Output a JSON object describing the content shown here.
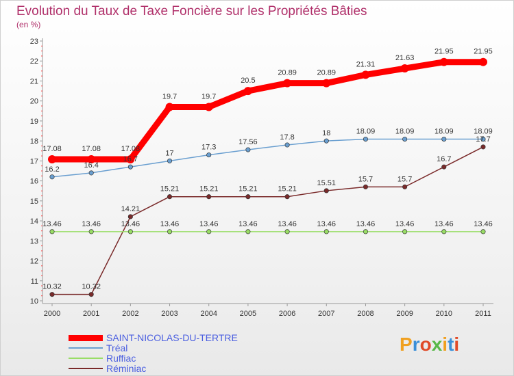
{
  "title": "Evolution du Taux de Taxe Foncière sur les Propriétés Bâties",
  "unit_label": "(en %)",
  "brand": {
    "text": "Proxiti",
    "colors": [
      "#f0a020",
      "#3a8fd8",
      "#e04a28",
      "#58b848",
      "#f0a020",
      "#3a8fd8",
      "#e04a28"
    ]
  },
  "chart_data": {
    "type": "line",
    "title": "Evolution du Taux de Taxe Foncière sur les Propriétés Bâties",
    "ylabel": "(en %)",
    "xlabel": "",
    "ylim": [
      10,
      23
    ],
    "yticks": [
      "10",
      "11",
      "12",
      "13",
      "14",
      "15",
      "16",
      "17",
      "18",
      "19",
      "20",
      "21",
      "22",
      "23"
    ],
    "x": [
      "2000",
      "2001",
      "2002",
      "2003",
      "2004",
      "2005",
      "2006",
      "2007",
      "2008",
      "2009",
      "2010",
      "2011"
    ],
    "series": [
      {
        "name": "SAINT-NICOLAS-DU-TERTRE",
        "color": "#ff0000",
        "values": [
          17.08,
          17.08,
          17.08,
          19.7,
          19.7,
          20.5,
          20.89,
          20.89,
          21.31,
          21.63,
          21.95,
          21.95
        ],
        "labels": [
          "17.08",
          "17.08",
          "17.08",
          "19.7",
          "19.7",
          "20.5",
          "20.89",
          "20.89",
          "21.31",
          "21.63",
          "21.95",
          "21.95"
        ]
      },
      {
        "name": "Tréal",
        "color": "#6a9fd0",
        "values": [
          16.2,
          16.4,
          16.7,
          17,
          17.3,
          17.56,
          17.8,
          18,
          18.09,
          18.09,
          18.09,
          18.09
        ],
        "labels": [
          "16.2",
          "16.4",
          "16.7",
          "17",
          "17.3",
          "17.56",
          "17.8",
          "18",
          "18.09",
          "18.09",
          "18.09",
          "18.09"
        ]
      },
      {
        "name": "Ruffiac",
        "color": "#99dd66",
        "values": [
          13.46,
          13.46,
          13.46,
          13.46,
          13.46,
          13.46,
          13.46,
          13.46,
          13.46,
          13.46,
          13.46,
          13.46
        ],
        "labels": [
          "13.46",
          "13.46",
          "13.46",
          "13.46",
          "13.46",
          "13.46",
          "13.46",
          "13.46",
          "13.46",
          "13.46",
          "13.46",
          "13.46"
        ]
      },
      {
        "name": "Réminiac",
        "color": "#7a2a2a",
        "values": [
          10.32,
          10.32,
          14.21,
          15.21,
          15.21,
          15.21,
          15.21,
          15.51,
          15.7,
          15.7,
          16.7,
          17.7
        ],
        "labels": [
          "10.32",
          "10.32",
          "14.21",
          "15.21",
          "15.21",
          "15.21",
          "15.21",
          "15.51",
          "15.7",
          "15.7",
          "16.7",
          "17.7"
        ]
      }
    ]
  }
}
